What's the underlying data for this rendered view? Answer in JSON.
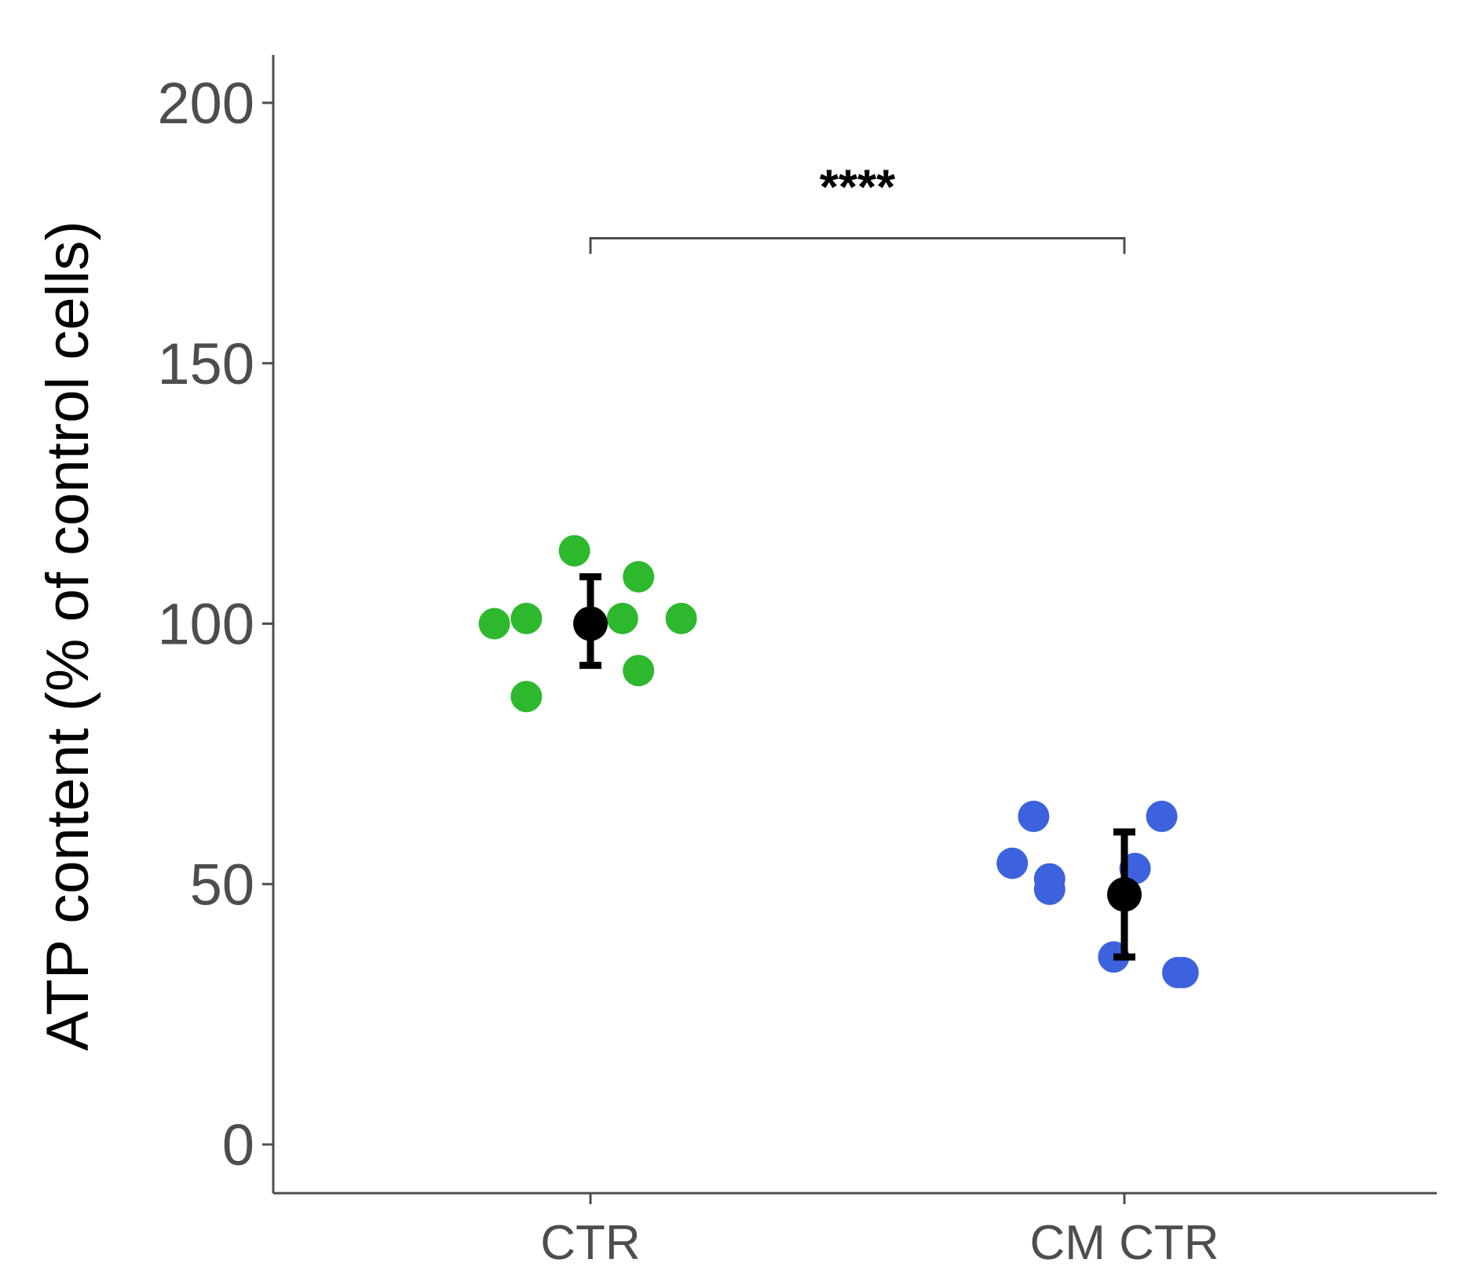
{
  "chart_data": {
    "type": "scatter",
    "title": "",
    "xlabel": "",
    "ylabel": "ATP content (% of control cells)",
    "categories": [
      "CTR",
      "CM CTR"
    ],
    "ylim": [
      -10,
      210
    ],
    "yticks": [
      0,
      50,
      100,
      150,
      200
    ],
    "grid": false,
    "legend": "none",
    "series": [
      {
        "category": "CTR",
        "color": "#2db82d",
        "points": [
          {
            "x": -0.18,
            "y": 100
          },
          {
            "x": -0.12,
            "y": 101
          },
          {
            "x": -0.12,
            "y": 86
          },
          {
            "x": -0.03,
            "y": 114
          },
          {
            "x": 0.06,
            "y": 101
          },
          {
            "x": 0.09,
            "y": 109
          },
          {
            "x": 0.09,
            "y": 91
          },
          {
            "x": 0.17,
            "y": 101
          }
        ],
        "mean": 100,
        "error_low": 92,
        "error_high": 109
      },
      {
        "category": "CM CTR",
        "color": "#3d62dd",
        "points": [
          {
            "x": -0.21,
            "y": 54
          },
          {
            "x": -0.17,
            "y": 63
          },
          {
            "x": -0.14,
            "y": 51
          },
          {
            "x": -0.14,
            "y": 49
          },
          {
            "x": -0.02,
            "y": 36
          },
          {
            "x": 0.02,
            "y": 53
          },
          {
            "x": 0.07,
            "y": 63
          },
          {
            "x": 0.1,
            "y": 33
          },
          {
            "x": 0.11,
            "y": 33
          }
        ],
        "mean": 48,
        "error_low": 36,
        "error_high": 60
      }
    ],
    "mean_color": "#000000",
    "annotations": [
      {
        "type": "significance",
        "from": "CTR",
        "to": "CM CTR",
        "y": 174,
        "label": "****"
      }
    ]
  }
}
